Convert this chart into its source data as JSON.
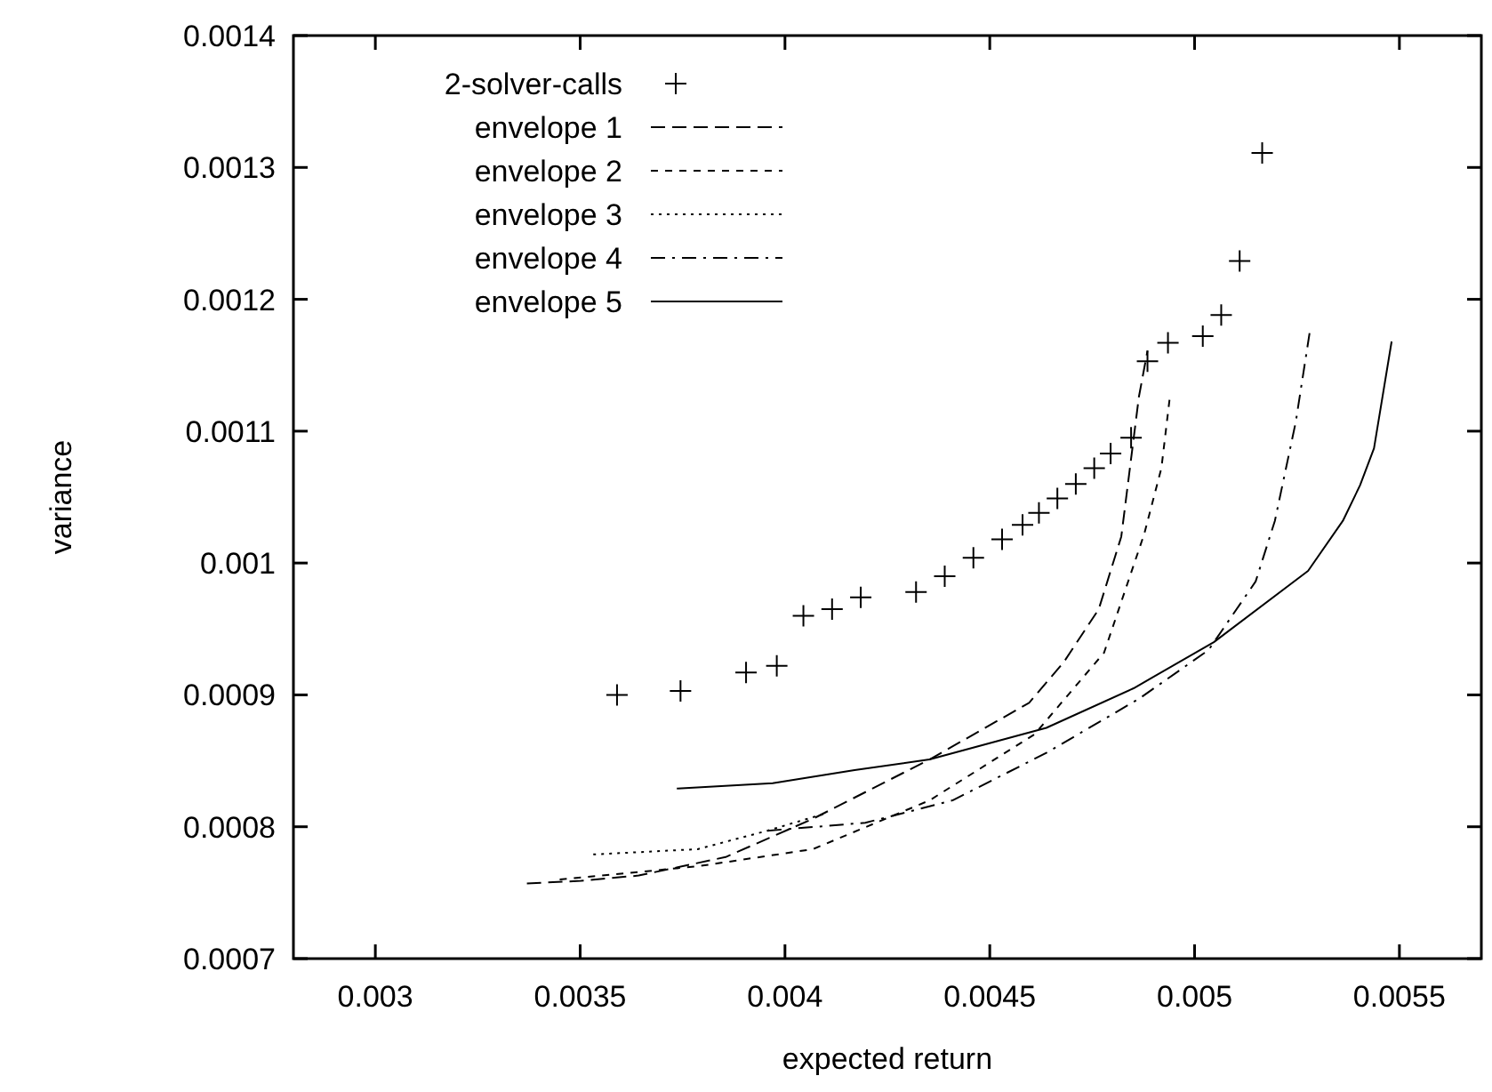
{
  "chart_data": {
    "type": "line",
    "xlabel": "expected return",
    "ylabel": "variance",
    "xlim": [
      0.0028,
      0.0057
    ],
    "ylim": [
      0.0007,
      0.0014
    ],
    "xticks": [
      0.003,
      0.0035,
      0.004,
      0.0045,
      0.005,
      0.0055
    ],
    "yticks": [
      0.0007,
      0.0008,
      0.0009,
      0.001,
      0.0011,
      0.0012,
      0.0013,
      0.0014
    ],
    "grid": false,
    "legend": "top left",
    "series": [
      {
        "name": "2-solver-calls",
        "type": "scatter",
        "marker": "cross",
        "color": "#000000",
        "x": [
          0.00359,
          0.003745,
          0.003905,
          0.00398,
          0.004045,
          0.004115,
          0.004185,
          0.00432,
          0.00439,
          0.00446,
          0.00453,
          0.00458,
          0.00462,
          0.004665,
          0.00471,
          0.004755,
          0.004795,
          0.004845,
          0.004885,
          0.004935,
          0.00502,
          0.005065,
          0.00511,
          0.005165
        ],
        "values": [
          0.0009,
          0.000903,
          0.000917,
          0.000922,
          0.00096,
          0.000965,
          0.000974,
          0.000978,
          0.00099,
          0.001004,
          0.001018,
          0.001029,
          0.001038,
          0.001049,
          0.00106,
          0.001072,
          0.001083,
          0.001095,
          0.001153,
          0.001167,
          0.001172,
          0.001188,
          0.001229,
          0.001311
        ]
      },
      {
        "name": "envelope 1",
        "line_style": "dashed",
        "color": "#000000",
        "x": [
          0.00337,
          0.003502,
          0.003643,
          0.003855,
          0.004068,
          0.004353,
          0.004596,
          0.004681,
          0.004766,
          0.004821,
          0.004864,
          0.004885
        ],
        "values": [
          0.000757,
          0.000759,
          0.000763,
          0.000777,
          0.000806,
          0.000851,
          0.000894,
          0.000925,
          0.000965,
          0.00102,
          0.001126,
          0.001161
        ]
      },
      {
        "name": "envelope 2",
        "line_style": "shortdash",
        "color": "#000000",
        "x": [
          0.00345,
          0.003787,
          0.004068,
          0.004353,
          0.004609,
          0.004779,
          0.004877,
          0.004919,
          0.00494
        ],
        "values": [
          0.00076,
          0.00077,
          0.000783,
          0.00082,
          0.00087,
          0.000932,
          0.001022,
          0.001072,
          0.001127
        ]
      },
      {
        "name": "envelope 3",
        "line_style": "dotted",
        "color": "#000000",
        "x": [
          0.003532,
          0.003787,
          0.003957,
          0.004098
        ],
        "values": [
          0.000779,
          0.000783,
          0.000797,
          0.00081
        ]
      },
      {
        "name": "envelope 4",
        "line_style": "dashdot",
        "color": "#000000",
        "x": [
          0.003957,
          0.004196,
          0.004409,
          0.004638,
          0.004864,
          0.005034,
          0.005149,
          0.005196,
          0.005247,
          0.005281
        ],
        "values": [
          0.000797,
          0.000803,
          0.00082,
          0.000856,
          0.000897,
          0.000934,
          0.000986,
          0.001032,
          0.001107,
          0.001175
        ]
      },
      {
        "name": "envelope 5",
        "line_style": "solid",
        "color": "#000000",
        "x": [
          0.003736,
          0.00397,
          0.00417,
          0.004353,
          0.004638,
          0.004851,
          0.005047,
          0.005277,
          0.005362,
          0.005404,
          0.005438,
          0.005481
        ],
        "values": [
          0.000829,
          0.000833,
          0.000843,
          0.000851,
          0.000875,
          0.000905,
          0.00094,
          0.000994,
          0.001032,
          0.001059,
          0.001087,
          0.001168
        ]
      }
    ]
  }
}
